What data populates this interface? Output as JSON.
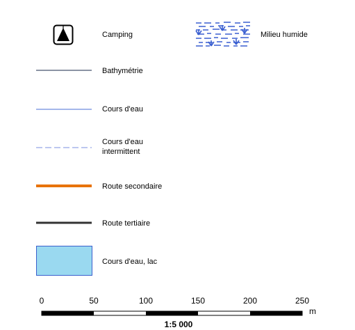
{
  "legend": {
    "camping": "Camping",
    "wetland": "Milieu humide",
    "bathymetry": "Bathymétrie",
    "stream": "Cours d'eau",
    "intermittent_line1": "Cours d'eau",
    "intermittent_line2": "intermittent",
    "secondary_road": "Route secondaire",
    "tertiary_road": "Route tertiaire",
    "lake": "Cours d'eau, lac"
  },
  "colors": {
    "bathymetry": "#1a2a4a",
    "stream": "#4a6fd6",
    "intermittent": "#7a8fe0",
    "secondary_road": "#e8730a",
    "tertiary_road": "#333333",
    "lake_fill": "#9ad9f0",
    "lake_stroke": "#3a5fcd",
    "wetland": "#3a5fd0"
  },
  "scalebar": {
    "ticks": [
      "0",
      "50",
      "100",
      "150",
      "200",
      "250"
    ],
    "unit": "m",
    "ratio": "1:5 000"
  }
}
